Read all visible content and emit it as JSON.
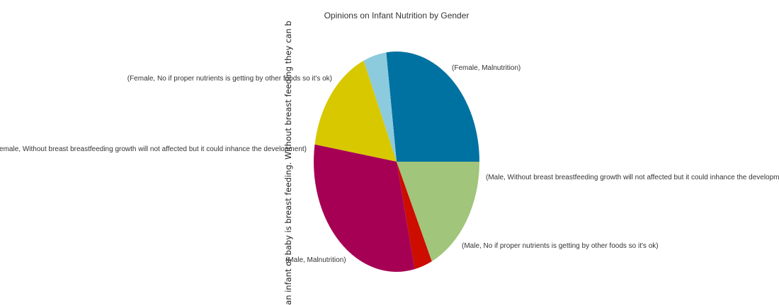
{
  "chart_data": {
    "type": "pie",
    "title": "Opinions on Infant Nutrition by Gender",
    "ylabel": "an infant or baby is breast feeding. Without breast feeding they can b",
    "slices": [
      {
        "label": "(Female, Malnutrition)",
        "value": 27.0,
        "color": "#0072a1"
      },
      {
        "label": "(Male, Without breast breastfeeding growth will not affected but it could inhance the development)",
        "value": 4.5,
        "color": "#8ccbdd"
      },
      {
        "label": "(Male, No if proper nutrients is getting by other foods so it's ok)",
        "value": 16.0,
        "color": "#d8c800"
      },
      {
        "label": "(Male, Malnutrition)",
        "value": 31.0,
        "color": "#a60055"
      },
      {
        "label": "(Female, Without breast breastfeeding growth will not affected but it could inhance the development)",
        "value": 3.5,
        "color": "#cc0d00"
      },
      {
        "label": "(Female, No if proper nutrients is getting by other foods so it's ok)",
        "value": 18.0,
        "color": "#a1c57a"
      }
    ]
  }
}
